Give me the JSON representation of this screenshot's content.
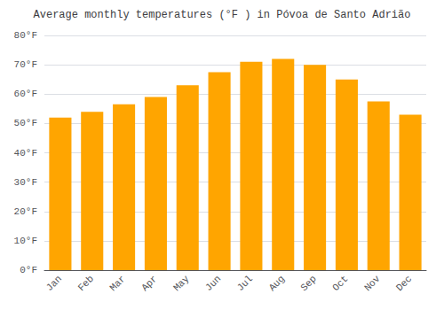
{
  "chart_data": {
    "type": "bar",
    "title": "Average monthly temperatures (°F ) in Póvoa de Santo Adrião",
    "categories": [
      "Jan",
      "Feb",
      "Mar",
      "Apr",
      "May",
      "Jun",
      "Jul",
      "Aug",
      "Sep",
      "Oct",
      "Nov",
      "Dec"
    ],
    "values": [
      52,
      54,
      56.5,
      59,
      63,
      67.5,
      71,
      72,
      70,
      65,
      57.5,
      53
    ],
    "color": "#FFA500",
    "ylim": [
      0,
      80
    ],
    "yticks": [
      {
        "value": 0,
        "label": "0°F"
      },
      {
        "value": 10,
        "label": "10°F"
      },
      {
        "value": 20,
        "label": "20°F"
      },
      {
        "value": 30,
        "label": "30°F"
      },
      {
        "value": 40,
        "label": "40°F"
      },
      {
        "value": 50,
        "label": "50°F"
      },
      {
        "value": 60,
        "label": "60°F"
      },
      {
        "value": 70,
        "label": "70°F"
      },
      {
        "value": 80,
        "label": "80°F"
      }
    ],
    "grid": true
  }
}
